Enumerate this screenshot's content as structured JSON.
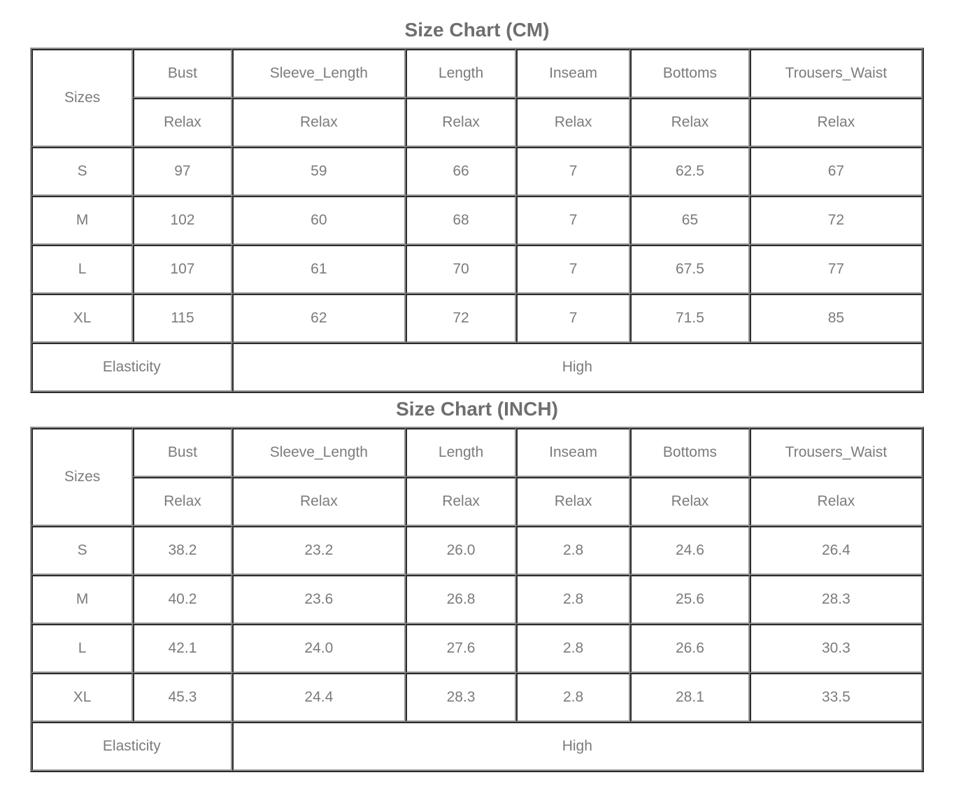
{
  "colors": {
    "background": "#ffffff",
    "title_text": "#6e6e6e",
    "cell_text": "#7b7b7b",
    "grid_dark": "#2b2b2b",
    "grid_light": "#969696"
  },
  "tables": [
    {
      "title": "Size Chart (CM)",
      "corner_label": "Sizes",
      "columns": [
        "Bust",
        "Sleeve_Length",
        "Length",
        "Inseam",
        "Bottoms",
        "Trousers_Waist"
      ],
      "fit": [
        "Relax",
        "Relax",
        "Relax",
        "Relax",
        "Relax",
        "Relax"
      ],
      "rows": [
        {
          "size": "S",
          "values": [
            "97",
            "59",
            "66",
            "7",
            "62.5",
            "67"
          ]
        },
        {
          "size": "M",
          "values": [
            "102",
            "60",
            "68",
            "7",
            "65",
            "72"
          ]
        },
        {
          "size": "L",
          "values": [
            "107",
            "61",
            "70",
            "7",
            "67.5",
            "77"
          ]
        },
        {
          "size": "XL",
          "values": [
            "115",
            "62",
            "72",
            "7",
            "71.5",
            "85"
          ]
        }
      ],
      "footer": {
        "label": "Elasticity",
        "value": "High"
      }
    },
    {
      "title": "Size Chart (INCH)",
      "corner_label": "Sizes",
      "columns": [
        "Bust",
        "Sleeve_Length",
        "Length",
        "Inseam",
        "Bottoms",
        "Trousers_Waist"
      ],
      "fit": [
        "Relax",
        "Relax",
        "Relax",
        "Relax",
        "Relax",
        "Relax"
      ],
      "rows": [
        {
          "size": "S",
          "values": [
            "38.2",
            "23.2",
            "26.0",
            "2.8",
            "24.6",
            "26.4"
          ]
        },
        {
          "size": "M",
          "values": [
            "40.2",
            "23.6",
            "26.8",
            "2.8",
            "25.6",
            "28.3"
          ]
        },
        {
          "size": "L",
          "values": [
            "42.1",
            "24.0",
            "27.6",
            "2.8",
            "26.6",
            "30.3"
          ]
        },
        {
          "size": "XL",
          "values": [
            "45.3",
            "24.4",
            "28.3",
            "2.8",
            "28.1",
            "33.5"
          ]
        }
      ],
      "footer": {
        "label": "Elasticity",
        "value": "High"
      }
    }
  ]
}
